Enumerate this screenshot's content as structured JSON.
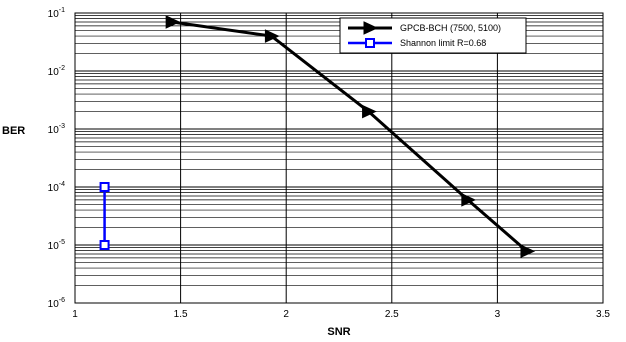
{
  "chart_data": {
    "type": "line",
    "xlabel": "SNR",
    "ylabel": "BER",
    "xlim": [
      1,
      3.5
    ],
    "ylim": [
      1e-06,
      0.1
    ],
    "yscale": "log",
    "grid": true,
    "legend_position": "top-right",
    "x_ticks": [
      "1",
      "1.5",
      "2",
      "2.5",
      "3",
      "3.5"
    ],
    "y_ticks": [
      {
        "base": "10",
        "exp": "-1",
        "value": 0.1
      },
      {
        "base": "10",
        "exp": "-2",
        "value": 0.01
      },
      {
        "base": "10",
        "exp": "-3",
        "value": 0.001
      },
      {
        "base": "10",
        "exp": "-4",
        "value": 0.0001
      },
      {
        "base": "10",
        "exp": "-5",
        "value": 1e-05
      },
      {
        "base": "10",
        "exp": "-6",
        "value": 1e-06
      }
    ],
    "series": [
      {
        "name": "GPCB-BCH (7500, 5100)",
        "color": "#000000",
        "marker": "triangle-right",
        "x": [
          1.46,
          1.93,
          2.39,
          2.86,
          3.14
        ],
        "y": [
          0.07,
          0.04,
          0.002,
          6e-05,
          7.8e-06
        ]
      },
      {
        "name": "Shannon limit R=0.68",
        "color": "#0000ff",
        "marker": "square",
        "x": [
          1.14,
          1.14
        ],
        "y": [
          0.0001,
          1e-05
        ]
      }
    ]
  }
}
